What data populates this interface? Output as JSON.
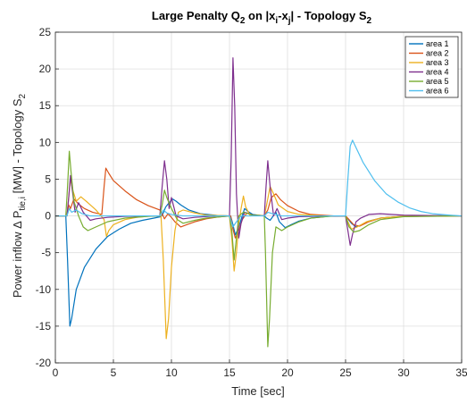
{
  "chart_data": {
    "type": "line",
    "title": "Large Penalty Q",
    "title_sub_q": "2",
    "title_mid": " on |x",
    "title_sub_i": "i",
    "title_mid2": "-x",
    "title_sub_j": "j",
    "title_end": "| - Topology S",
    "title_sub_s": "2",
    "xlabel": "Time [sec]",
    "ylabel": "Power inflow Δ P",
    "ylabel_sub": "tie,i",
    "ylabel_end": " [MW] - Topology S",
    "ylabel_sub2": "2",
    "xlim": [
      0,
      35
    ],
    "ylim": [
      -20,
      25
    ],
    "xticks": [
      "0",
      "5",
      "10",
      "15",
      "20",
      "25",
      "30",
      "35"
    ],
    "yticks": [
      "-20",
      "-15",
      "-10",
      "-5",
      "0",
      "5",
      "10",
      "15",
      "20",
      "25"
    ],
    "grid": true,
    "legend_position": "top-right",
    "series": [
      {
        "name": "area 1",
        "color": "#0072bd",
        "points": [
          [
            0,
            0
          ],
          [
            0.9,
            0
          ],
          [
            1.05,
            -6
          ],
          [
            1.25,
            -15
          ],
          [
            1.4,
            -14
          ],
          [
            1.8,
            -10
          ],
          [
            2.5,
            -7
          ],
          [
            3.5,
            -4.5
          ],
          [
            4.5,
            -2.8
          ],
          [
            5.5,
            -1.8
          ],
          [
            6.5,
            -1
          ],
          [
            7.5,
            -0.6
          ],
          [
            8.5,
            -0.3
          ],
          [
            9.1,
            -0.1
          ],
          [
            9.3,
            0.4
          ],
          [
            9.5,
            1.2
          ],
          [
            9.8,
            1.8
          ],
          [
            10.1,
            2.3
          ],
          [
            10.4,
            2
          ],
          [
            10.8,
            1.5
          ],
          [
            11.5,
            0.8
          ],
          [
            12.5,
            0.3
          ],
          [
            14,
            0.05
          ],
          [
            15.1,
            0
          ],
          [
            15.3,
            -1.2
          ],
          [
            15.5,
            -2.6
          ],
          [
            15.8,
            -1.5
          ],
          [
            16.1,
            0
          ],
          [
            16.3,
            1
          ],
          [
            16.6,
            0.6
          ],
          [
            17,
            0.2
          ],
          [
            18,
            0
          ],
          [
            18.2,
            -0.3
          ],
          [
            18.5,
            -0.6
          ],
          [
            19,
            0.5
          ],
          [
            19.3,
            -0.8
          ],
          [
            19.8,
            -1.6
          ],
          [
            20.3,
            -1.2
          ],
          [
            21,
            -0.7
          ],
          [
            22,
            -0.3
          ],
          [
            23.5,
            -0.05
          ],
          [
            25,
            0
          ],
          [
            25.2,
            -0.4
          ],
          [
            25.5,
            -1
          ],
          [
            25.9,
            -1.5
          ],
          [
            26.4,
            -1.2
          ],
          [
            27,
            -0.7
          ],
          [
            28,
            -0.3
          ],
          [
            30,
            -0.05
          ],
          [
            35,
            0
          ]
        ]
      },
      {
        "name": "area 2",
        "color": "#d95319",
        "points": [
          [
            0,
            0
          ],
          [
            1.0,
            0
          ],
          [
            1.15,
            1.5
          ],
          [
            1.3,
            1
          ],
          [
            1.6,
            2.3
          ],
          [
            2,
            1.6
          ],
          [
            2.5,
            1
          ],
          [
            3.2,
            0.5
          ],
          [
            4,
            0.2
          ],
          [
            4.2,
            4
          ],
          [
            4.35,
            6.5
          ],
          [
            4.6,
            5.8
          ],
          [
            5,
            4.8
          ],
          [
            6,
            3.4
          ],
          [
            7,
            2.2
          ],
          [
            8,
            1.4
          ],
          [
            9,
            0.8
          ],
          [
            9.2,
            0.3
          ],
          [
            9.4,
            -0.4
          ],
          [
            9.7,
            0.3
          ],
          [
            10,
            -0.2
          ],
          [
            10.3,
            -0.8
          ],
          [
            10.8,
            -1.5
          ],
          [
            11.3,
            -1.2
          ],
          [
            12,
            -0.8
          ],
          [
            13,
            -0.4
          ],
          [
            14,
            -0.15
          ],
          [
            15.1,
            0
          ],
          [
            15.3,
            -1.8
          ],
          [
            15.5,
            -3
          ],
          [
            15.8,
            -2
          ],
          [
            16.1,
            -0.5
          ],
          [
            16.5,
            0.4
          ],
          [
            17,
            0.1
          ],
          [
            18,
            0
          ],
          [
            18.3,
            0.8
          ],
          [
            18.6,
            2.5
          ],
          [
            19,
            3
          ],
          [
            19.4,
            2.2
          ],
          [
            20,
            1.4
          ],
          [
            21,
            0.6
          ],
          [
            22,
            0.2
          ],
          [
            24,
            0
          ],
          [
            25,
            0
          ],
          [
            25.3,
            -0.5
          ],
          [
            25.7,
            -1.2
          ],
          [
            26.2,
            -1.4
          ],
          [
            27,
            -0.8
          ],
          [
            28,
            -0.3
          ],
          [
            30,
            -0.05
          ],
          [
            35,
            0
          ]
        ]
      },
      {
        "name": "area 3",
        "color": "#edb120",
        "points": [
          [
            0,
            0
          ],
          [
            1.0,
            0
          ],
          [
            1.15,
            2.5
          ],
          [
            1.3,
            5
          ],
          [
            1.5,
            3.5
          ],
          [
            1.8,
            2
          ],
          [
            2.2,
            2.6
          ],
          [
            2.8,
            1.8
          ],
          [
            3.5,
            0.8
          ],
          [
            4.2,
            -0.5
          ],
          [
            4.4,
            -2.8
          ],
          [
            4.6,
            -2
          ],
          [
            5,
            -1.2
          ],
          [
            6,
            -0.5
          ],
          [
            7,
            -0.2
          ],
          [
            8,
            -0.05
          ],
          [
            9.1,
            0
          ],
          [
            9.3,
            -6
          ],
          [
            9.55,
            -16.7
          ],
          [
            9.75,
            -14
          ],
          [
            10,
            -7
          ],
          [
            10.3,
            -2
          ],
          [
            10.6,
            0.5
          ],
          [
            11,
            0.8
          ],
          [
            12,
            0.4
          ],
          [
            13,
            0.1
          ],
          [
            15,
            0
          ],
          [
            15.2,
            -3
          ],
          [
            15.4,
            -7.5
          ],
          [
            15.6,
            -5
          ],
          [
            15.8,
            -1
          ],
          [
            16,
            1
          ],
          [
            16.2,
            2.7
          ],
          [
            16.4,
            1.2
          ],
          [
            16.8,
            0
          ],
          [
            17.5,
            0.1
          ],
          [
            18,
            0
          ],
          [
            18.2,
            1.5
          ],
          [
            18.5,
            4
          ],
          [
            18.8,
            3
          ],
          [
            19.2,
            1.5
          ],
          [
            20,
            0.6
          ],
          [
            21,
            0.2
          ],
          [
            23,
            0
          ],
          [
            25,
            0
          ],
          [
            25.2,
            -0.8
          ],
          [
            25.5,
            -1.8
          ],
          [
            26,
            -1.5
          ],
          [
            26.8,
            -0.8
          ],
          [
            28,
            -0.3
          ],
          [
            30,
            -0.05
          ],
          [
            35,
            0
          ]
        ]
      },
      {
        "name": "area 4",
        "color": "#7e2f8e",
        "points": [
          [
            0,
            0
          ],
          [
            1.0,
            0
          ],
          [
            1.15,
            2.5
          ],
          [
            1.3,
            5.5
          ],
          [
            1.5,
            3
          ],
          [
            1.7,
            0.5
          ],
          [
            2,
            1.8
          ],
          [
            2.4,
            0.5
          ],
          [
            3,
            -0.6
          ],
          [
            3.5,
            -0.4
          ],
          [
            4.5,
            -0.2
          ],
          [
            6,
            -0.05
          ],
          [
            9,
            0
          ],
          [
            9.2,
            4
          ],
          [
            9.4,
            7.5
          ],
          [
            9.6,
            5
          ],
          [
            9.8,
            1
          ],
          [
            10,
            2.5
          ],
          [
            10.4,
            0
          ],
          [
            11,
            -0.4
          ],
          [
            12,
            -0.2
          ],
          [
            14,
            0
          ],
          [
            15,
            0
          ],
          [
            15.15,
            8
          ],
          [
            15.3,
            21.5
          ],
          [
            15.45,
            15
          ],
          [
            15.6,
            3
          ],
          [
            15.8,
            -3
          ],
          [
            16,
            -1
          ],
          [
            16.3,
            0.5
          ],
          [
            17,
            0.1
          ],
          [
            18,
            0
          ],
          [
            18.15,
            4
          ],
          [
            18.3,
            7.5
          ],
          [
            18.5,
            4
          ],
          [
            18.8,
            0
          ],
          [
            19.1,
            1
          ],
          [
            19.5,
            -0.5
          ],
          [
            20,
            -0.3
          ],
          [
            21,
            -0.1
          ],
          [
            25,
            0
          ],
          [
            25.2,
            -2
          ],
          [
            25.4,
            -4
          ],
          [
            25.6,
            -2.5
          ],
          [
            25.9,
            -0.8
          ],
          [
            26.3,
            -0.3
          ],
          [
            27,
            0.2
          ],
          [
            28,
            0.3
          ],
          [
            30,
            0.1
          ],
          [
            35,
            0
          ]
        ]
      },
      {
        "name": "area 5",
        "color": "#77ac30",
        "points": [
          [
            0,
            0
          ],
          [
            0.9,
            0
          ],
          [
            1.05,
            4
          ],
          [
            1.2,
            8.8
          ],
          [
            1.35,
            6
          ],
          [
            1.6,
            2
          ],
          [
            2,
            0
          ],
          [
            2.4,
            -1.5
          ],
          [
            2.8,
            -2
          ],
          [
            3.5,
            -1.5
          ],
          [
            4.5,
            -0.8
          ],
          [
            6,
            -0.3
          ],
          [
            8,
            -0.05
          ],
          [
            9,
            0
          ],
          [
            9.2,
            1.5
          ],
          [
            9.4,
            3.5
          ],
          [
            9.6,
            2.5
          ],
          [
            10,
            1
          ],
          [
            10.5,
            -0.5
          ],
          [
            11,
            -1
          ],
          [
            12,
            -0.6
          ],
          [
            13,
            -0.3
          ],
          [
            15,
            0
          ],
          [
            15.2,
            -2
          ],
          [
            15.4,
            -6
          ],
          [
            15.6,
            -3
          ],
          [
            15.8,
            0
          ],
          [
            16.2,
            0.5
          ],
          [
            17,
            0.1
          ],
          [
            18,
            0
          ],
          [
            18.1,
            -5
          ],
          [
            18.3,
            -17.8
          ],
          [
            18.45,
            -14
          ],
          [
            18.7,
            -5
          ],
          [
            19,
            -1.5
          ],
          [
            19.5,
            -2
          ],
          [
            20,
            -1.5
          ],
          [
            21,
            -0.8
          ],
          [
            22,
            -0.3
          ],
          [
            24,
            0
          ],
          [
            25,
            0
          ],
          [
            25.3,
            -1.5
          ],
          [
            25.7,
            -2.2
          ],
          [
            26.2,
            -2
          ],
          [
            27,
            -1.2
          ],
          [
            28,
            -0.5
          ],
          [
            30,
            -0.1
          ],
          [
            35,
            0
          ]
        ]
      },
      {
        "name": "area 6",
        "color": "#4dbeee",
        "points": [
          [
            0,
            0
          ],
          [
            1.0,
            0
          ],
          [
            1.2,
            1
          ],
          [
            1.4,
            0.5
          ],
          [
            1.8,
            0.8
          ],
          [
            2.3,
            0.3
          ],
          [
            3,
            0
          ],
          [
            9,
            0
          ],
          [
            9.3,
            0.8
          ],
          [
            9.6,
            0.4
          ],
          [
            10,
            0.2
          ],
          [
            11,
            0
          ],
          [
            15,
            0
          ],
          [
            15.3,
            -1.5
          ],
          [
            15.6,
            -0.8
          ],
          [
            16,
            0
          ],
          [
            18,
            0
          ],
          [
            18.3,
            0.5
          ],
          [
            18.7,
            0.3
          ],
          [
            19.5,
            0
          ],
          [
            25,
            0
          ],
          [
            25.2,
            5
          ],
          [
            25.4,
            9.5
          ],
          [
            25.6,
            10.3
          ],
          [
            25.9,
            9.3
          ],
          [
            26.5,
            7.3
          ],
          [
            27.5,
            4.8
          ],
          [
            28.5,
            3
          ],
          [
            29.5,
            1.9
          ],
          [
            30.5,
            1.1
          ],
          [
            31.5,
            0.6
          ],
          [
            32.5,
            0.3
          ],
          [
            34,
            0.1
          ],
          [
            35,
            0
          ]
        ]
      }
    ]
  }
}
